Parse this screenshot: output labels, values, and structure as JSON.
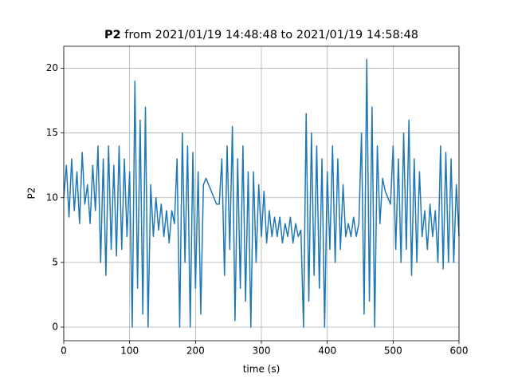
{
  "chart_data": {
    "type": "line",
    "title_bold": "P2",
    "title": "from 2021/01/19 14:48:48 to 2021/01/19 14:58:48",
    "xlabel": "time (s)",
    "ylabel": "P2",
    "xlim": [
      0,
      600
    ],
    "ylim": [
      -1.05,
      21.7
    ],
    "xticks": [
      0,
      100,
      200,
      300,
      400,
      500,
      600
    ],
    "yticks": [
      0,
      5,
      10,
      15,
      20
    ],
    "grid": true,
    "x": [
      0,
      4,
      8,
      12,
      16,
      20,
      24,
      28,
      32,
      36,
      40,
      44,
      48,
      52,
      56,
      60,
      64,
      68,
      72,
      76,
      80,
      84,
      88,
      92,
      96,
      100,
      104,
      108,
      112,
      116,
      120,
      124,
      128,
      132,
      136,
      140,
      144,
      148,
      152,
      156,
      160,
      164,
      168,
      172,
      176,
      180,
      184,
      188,
      192,
      196,
      200,
      204,
      208,
      212,
      216,
      220,
      224,
      228,
      232,
      236,
      240,
      244,
      248,
      252,
      256,
      260,
      264,
      268,
      272,
      276,
      280,
      284,
      288,
      292,
      296,
      300,
      304,
      308,
      312,
      316,
      320,
      324,
      328,
      332,
      336,
      340,
      344,
      348,
      352,
      356,
      360,
      364,
      368,
      372,
      376,
      380,
      384,
      388,
      392,
      396,
      400,
      404,
      408,
      412,
      416,
      420,
      424,
      428,
      432,
      436,
      440,
      444,
      448,
      452,
      456,
      460,
      464,
      468,
      472,
      476,
      480,
      484,
      488,
      492,
      496,
      500,
      504,
      508,
      512,
      516,
      520,
      524,
      528,
      532,
      536,
      540,
      544,
      548,
      552,
      556,
      560,
      564,
      568,
      572,
      576,
      580,
      584,
      588,
      592,
      596,
      600
    ],
    "series": [
      {
        "name": "P2",
        "color": "#1f77b4",
        "values": [
          10,
          12.5,
          8.5,
          13,
          9,
          12,
          8,
          13.5,
          9.5,
          11,
          8,
          12.5,
          9,
          14,
          5,
          13,
          4,
          14,
          6,
          12.5,
          5.5,
          14,
          6,
          13,
          7,
          12,
          0,
          19,
          3,
          16,
          1,
          17,
          0,
          11,
          7,
          10,
          7.5,
          9.5,
          7,
          9,
          6.5,
          9,
          8,
          13,
          0,
          15,
          5,
          14,
          0,
          13.5,
          3,
          12,
          1,
          11,
          11.5,
          11,
          10.5,
          10,
          9.5,
          9.5,
          13,
          4,
          14,
          6,
          15.5,
          0.5,
          13,
          3,
          14,
          2,
          12,
          0,
          12,
          5,
          11,
          7,
          10.5,
          6.5,
          9,
          7,
          8.5,
          7,
          8.5,
          6.5,
          8,
          7,
          8.5,
          6.5,
          8,
          7,
          7.5,
          0,
          16.5,
          2,
          15,
          4,
          14,
          3,
          13,
          0,
          12,
          6,
          14,
          5,
          13,
          6,
          11,
          7,
          8,
          7,
          8.5,
          7,
          8,
          15,
          1,
          20.7,
          2,
          17,
          0,
          14,
          8,
          11.5,
          10.5,
          10,
          9.5,
          14,
          6,
          13,
          5,
          15,
          6,
          16,
          4,
          13,
          5,
          12,
          7,
          9,
          6,
          9.5,
          7,
          9,
          5,
          14,
          4.5,
          13.5,
          5,
          13,
          5,
          11,
          7
        ]
      }
    ]
  }
}
